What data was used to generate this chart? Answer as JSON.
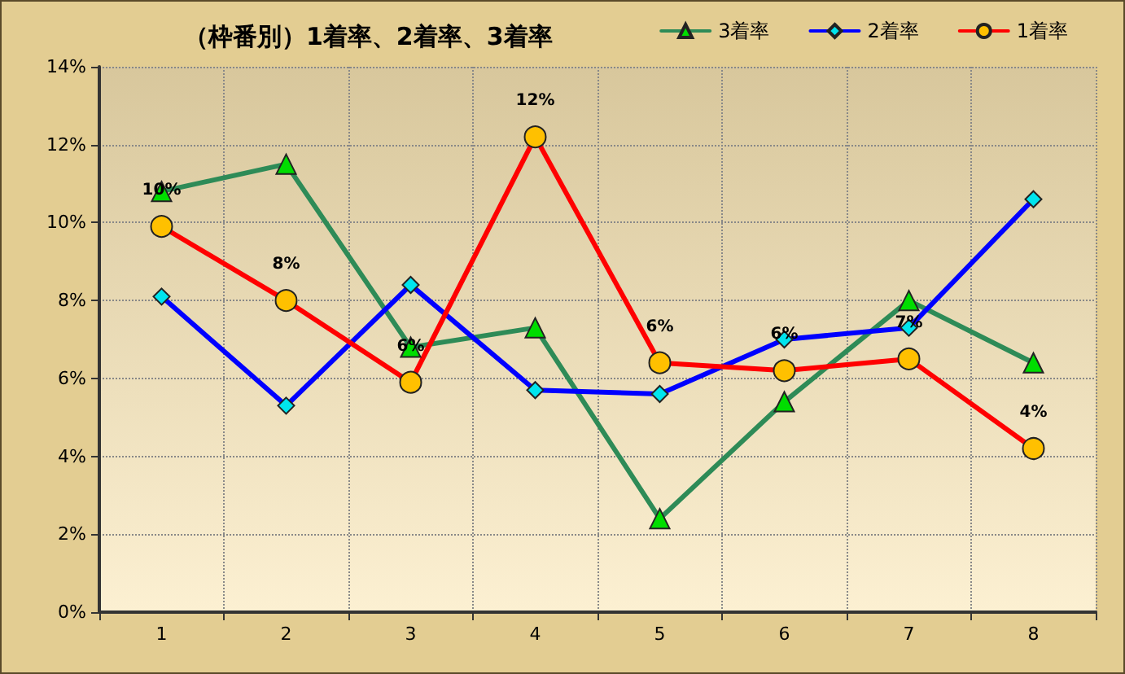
{
  "chart_data": {
    "type": "line",
    "title": "（枠番別）1着率、2着率、3着率",
    "categories": [
      "1",
      "2",
      "3",
      "4",
      "5",
      "6",
      "7",
      "8"
    ],
    "series": [
      {
        "name": "3着率",
        "color": "#2e8b57",
        "marker": "triangle",
        "values": [
          10.8,
          11.5,
          6.8,
          7.3,
          2.4,
          5.4,
          8.0,
          6.4
        ]
      },
      {
        "name": "2着率",
        "color": "#0000ff",
        "marker": "diamond",
        "values": [
          8.1,
          5.3,
          8.4,
          5.7,
          5.6,
          7.0,
          7.3,
          10.6
        ]
      },
      {
        "name": "1着率",
        "color": "#ff0000",
        "marker": "circle",
        "values": [
          9.9,
          8.0,
          5.9,
          12.2,
          6.4,
          6.2,
          6.5,
          4.2
        ],
        "value_labels": [
          "10%",
          "8%",
          "6%",
          "12%",
          "6%",
          "6%",
          "7%",
          "4%"
        ]
      }
    ],
    "ylim": [
      0,
      14
    ],
    "yticks": [
      {
        "value": 0,
        "label": "0%"
      },
      {
        "value": 2,
        "label": "2%"
      },
      {
        "value": 4,
        "label": "4%"
      },
      {
        "value": 6,
        "label": "6%"
      },
      {
        "value": 8,
        "label": "8%"
      },
      {
        "value": 10,
        "label": "10%"
      },
      {
        "value": 12,
        "label": "12%"
      },
      {
        "value": 14,
        "label": "14%"
      }
    ],
    "grid": true,
    "legend": "top right",
    "line_style": "solid"
  }
}
